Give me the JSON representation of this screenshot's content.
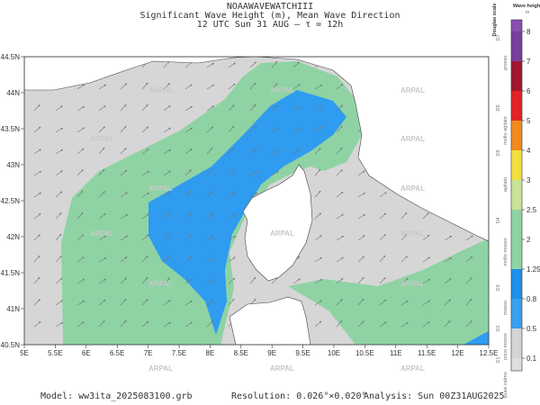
{
  "header": {
    "line1": "NOAAWAVEWATCHIII",
    "line2": "Significant Wave Height (m), Mean Wave Direction",
    "line3": "12 UTC Sun 31 AUG  –  τ = 12h"
  },
  "map": {
    "x_labels": [
      "5E",
      "5.5E",
      "6E",
      "6.5E",
      "7E",
      "7.5E",
      "8E",
      "8.5E",
      "9E",
      "9.5E",
      "10E",
      "10.5E",
      "11E",
      "11.5E",
      "12E",
      "12.5E"
    ],
    "y_labels": [
      "44.5N",
      "44N",
      "43.5N",
      "43N",
      "42.5N",
      "42N",
      "41.5N",
      "41N",
      "40.5N"
    ],
    "watermark": "ARPAL"
  },
  "colorbar": {
    "title": "Wave height",
    "unit": "m",
    "scale_title": "Douglas scale",
    "top_color": "#8a4fb0",
    "levels": [
      {
        "label": "8",
        "color": "#7a3f9d"
      },
      {
        "label": "7",
        "color": "#a01830"
      },
      {
        "label": "6",
        "color": "#e02424"
      },
      {
        "label": "5",
        "color": "#f08a20"
      },
      {
        "label": "4",
        "color": "#f2e040"
      },
      {
        "label": "3",
        "color": "#c9e39a"
      },
      {
        "label": "2.5",
        "color": "#8fd3a4"
      },
      {
        "label": "2",
        "color": "#8fd3a4"
      },
      {
        "label": "1.25",
        "color": "#1e90e8"
      },
      {
        "label": "0.8",
        "color": "#3aa0ee"
      },
      {
        "label": "0.5",
        "color": "#d4d4d4"
      },
      {
        "label": "0.1",
        "color": "#dedede"
      }
    ],
    "douglas": [
      "D7",
      "D6",
      "D5",
      "D4",
      "D3",
      "D2",
      "D1"
    ],
    "sea_states": [
      "grosso",
      "molto agitato",
      "agitato",
      "molto mosso",
      "mosso",
      "poco mosso",
      "quasi calmo"
    ]
  },
  "footer": {
    "model": "Model:  ww3ita_2025083100.grb",
    "resolution": "Resolution: 0.026°×0.020°",
    "analysis": "Analysis: Sun 00Z31AUG2025"
  }
}
